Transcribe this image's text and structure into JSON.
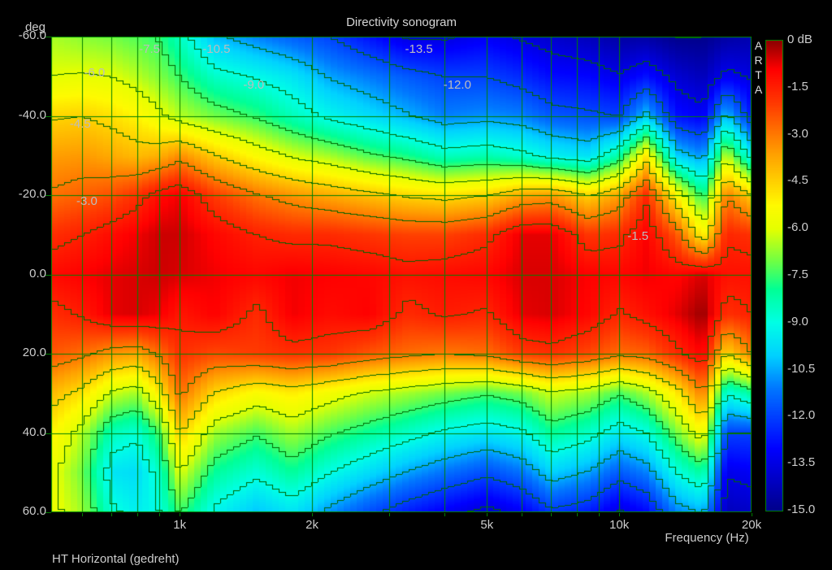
{
  "title": "Directivity sonogram",
  "watermark": "ARTA",
  "footer": "HT Horizontal (gedreht)",
  "y_axis": {
    "unit": "deg",
    "ticks": [
      {
        "label": "-60.0",
        "deg": -60
      },
      {
        "label": "-40.0",
        "deg": -40
      },
      {
        "label": "-20.0",
        "deg": -20
      },
      {
        "label": "0.0",
        "deg": 0
      },
      {
        "label": "20.0",
        "deg": 20
      },
      {
        "label": "40.0",
        "deg": 40
      },
      {
        "label": "60.0",
        "deg": 60
      }
    ]
  },
  "x_axis": {
    "title": "Frequency (Hz)",
    "ticks": [
      {
        "label": "1k",
        "hz": 1000
      },
      {
        "label": "2k",
        "hz": 2000
      },
      {
        "label": "5k",
        "hz": 5000
      },
      {
        "label": "10k",
        "hz": 10000
      },
      {
        "label": "20k",
        "hz": 20000
      }
    ]
  },
  "colorbar": {
    "labels": [
      "0 dB",
      "-1.5",
      "-3.0",
      "-4.5",
      "-6.0",
      "-7.5",
      "-9.0",
      "-10.5",
      "-12.0",
      "-13.5",
      "-15.0"
    ]
  },
  "chart_data": {
    "type": "heatmap",
    "subtype": "directivity-sonogram-with-contours",
    "title": "Directivity sonogram",
    "xlabel": "Frequency (Hz)",
    "ylabel": "deg",
    "zlabel": "dB",
    "x_scale": "log",
    "x_range": [
      510,
      20000
    ],
    "y_range": [
      -60,
      60
    ],
    "z_range": [
      -15,
      0
    ],
    "contour_step_db": 1.5,
    "grid_frequencies_hz": [
      600,
      700,
      800,
      900,
      1000,
      2000,
      3000,
      4000,
      5000,
      6000,
      7000,
      8000,
      9000,
      10000,
      20000
    ],
    "grid_angles_deg": [
      -40,
      -20,
      0,
      20,
      40
    ],
    "frequencies": [
      500,
      600,
      700,
      800,
      900,
      1000,
      1200,
      1500,
      1800,
      2200,
      2700,
      3300,
      4000,
      5000,
      6000,
      7000,
      8500,
      10000,
      11500,
      13500,
      15500,
      17500,
      20000
    ],
    "angles": [
      -60,
      -50,
      -40,
      -30,
      -20,
      -10,
      0,
      10,
      20,
      30,
      40,
      50,
      60
    ],
    "values_db": [
      [
        -6.5,
        -6.8,
        -7.0,
        -7.3,
        -7.6,
        -8.5,
        -10.3,
        -11.0,
        -11.5,
        -12.0,
        -12.8,
        -13.6,
        -13.6,
        -13.2,
        -13.6,
        -13.9,
        -14.2,
        -14.6,
        -14.6,
        -15.0,
        -15.0,
        -14.6,
        -14.4
      ],
      [
        -6.0,
        -5.9,
        -6.0,
        -6.4,
        -6.9,
        -7.5,
        -8.6,
        -9.1,
        -9.6,
        -10.6,
        -11.1,
        -11.6,
        -12.0,
        -12.0,
        -12.4,
        -12.9,
        -13.0,
        -13.4,
        -12.8,
        -13.8,
        -14.2,
        -13.2,
        -13.6
      ],
      [
        -4.6,
        -4.5,
        -4.8,
        -5.2,
        -5.8,
        -6.4,
        -7.0,
        -7.6,
        -8.4,
        -9.2,
        -9.8,
        -10.4,
        -11.0,
        -10.8,
        -11.0,
        -11.6,
        -11.8,
        -12.0,
        -10.2,
        -12.8,
        -13.2,
        -10.2,
        -12.6
      ],
      [
        -3.6,
        -3.5,
        -3.8,
        -4.1,
        -3.9,
        -3.3,
        -4.4,
        -5.4,
        -6.1,
        -6.6,
        -7.3,
        -7.8,
        -8.5,
        -8.3,
        -8.7,
        -9.3,
        -9.7,
        -8.1,
        -5.0,
        -10.0,
        -10.8,
        -6.2,
        -9.4
      ],
      [
        -2.9,
        -2.6,
        -2.3,
        -1.8,
        -1.1,
        -0.8,
        -2.0,
        -2.9,
        -3.4,
        -3.8,
        -4.2,
        -4.6,
        -4.8,
        -4.5,
        -3.7,
        -3.5,
        -4.5,
        -3.6,
        -1.7,
        -5.2,
        -7.8,
        -3.0,
        -4.4
      ],
      [
        -1.8,
        -1.5,
        -1.1,
        -0.8,
        -0.5,
        -0.5,
        -1.0,
        -1.5,
        -1.7,
        -1.7,
        -1.9,
        -2.1,
        -2.1,
        -1.7,
        -0.7,
        -0.7,
        -1.9,
        -1.7,
        -0.9,
        -2.4,
        -5.2,
        -1.6,
        -1.8
      ],
      [
        -1.1,
        -0.9,
        -0.7,
        -0.6,
        -0.5,
        -0.6,
        -0.8,
        -1.0,
        -0.8,
        -0.9,
        -1.0,
        -1.2,
        -1.1,
        -1.0,
        -0.6,
        -0.6,
        -0.9,
        -1.0,
        -0.8,
        -1.0,
        -0.6,
        -1.2,
        -1.2
      ],
      [
        -1.8,
        -1.4,
        -0.7,
        -0.6,
        -0.8,
        -1.3,
        -0.9,
        -1.7,
        -0.8,
        -1.1,
        -0.9,
        -1.7,
        -1.4,
        -1.6,
        -0.7,
        -0.6,
        -1.0,
        -1.6,
        -1.2,
        -0.7,
        -0.1,
        -1.8,
        -1.5
      ],
      [
        -2.4,
        -2.8,
        -3.4,
        -3.6,
        -2.8,
        -1.8,
        -2.2,
        -2.0,
        -1.8,
        -1.9,
        -2.4,
        -2.8,
        -3.0,
        -2.8,
        -2.0,
        -1.8,
        -2.2,
        -2.8,
        -2.6,
        -1.7,
        -0.9,
        -4.6,
        -3.0
      ],
      [
        -4.0,
        -4.8,
        -6.2,
        -6.6,
        -5.0,
        -2.8,
        -4.6,
        -5.4,
        -5.0,
        -5.6,
        -6.2,
        -6.6,
        -7.0,
        -7.4,
        -7.0,
        -6.2,
        -6.6,
        -7.4,
        -6.6,
        -5.0,
        -3.0,
        -9.0,
        -8.0
      ],
      [
        -5.0,
        -6.4,
        -8.4,
        -8.8,
        -7.4,
        -4.4,
        -6.6,
        -7.4,
        -6.6,
        -7.4,
        -8.0,
        -8.6,
        -9.2,
        -9.6,
        -9.2,
        -8.0,
        -8.6,
        -9.6,
        -9.0,
        -7.0,
        -5.4,
        -12.0,
        -12.0
      ],
      [
        -5.6,
        -7.0,
        -9.6,
        -9.8,
        -8.6,
        -6.0,
        -8.0,
        -8.8,
        -8.0,
        -9.0,
        -9.8,
        -10.6,
        -11.2,
        -11.8,
        -11.2,
        -10.0,
        -10.6,
        -11.6,
        -11.0,
        -9.0,
        -8.0,
        -13.4,
        -13.2
      ],
      [
        -5.6,
        -6.6,
        -8.8,
        -9.4,
        -9.0,
        -7.4,
        -9.2,
        -10.2,
        -9.6,
        -10.8,
        -11.8,
        -12.6,
        -13.2,
        -13.8,
        -13.2,
        -12.2,
        -12.6,
        -13.6,
        -13.0,
        -11.0,
        -10.4,
        -14.2,
        -14.0
      ]
    ],
    "contour_labels": [
      {
        "text": "-6.0",
        "hz": 640,
        "deg": -51
      },
      {
        "text": "-7.5",
        "hz": 854,
        "deg": -57
      },
      {
        "text": "-10.5",
        "hz": 1212,
        "deg": -57
      },
      {
        "text": "-9.0",
        "hz": 1474,
        "deg": -48
      },
      {
        "text": "-13.5",
        "hz": 3502,
        "deg": -57
      },
      {
        "text": "-12.0",
        "hz": 4281,
        "deg": -48
      },
      {
        "text": "-4.5",
        "hz": 594,
        "deg": -38
      },
      {
        "text": "-3.0",
        "hz": 615,
        "deg": -18.6
      },
      {
        "text": "-1.5",
        "hz": 11030,
        "deg": -9.7
      }
    ],
    "colors": {
      "background": "#000000",
      "grid": "#008000",
      "contour": "#006400",
      "axis_text": "#cccccc",
      "contour_label_text": "#bdbdbd",
      "watermark_text": "#dedede"
    },
    "colormap_stops": [
      [
        0.0,
        0,
        0,
        140
      ],
      [
        0.13,
        0,
        0,
        255
      ],
      [
        0.26,
        0,
        120,
        255
      ],
      [
        0.33,
        0,
        210,
        255
      ],
      [
        0.4,
        0,
        255,
        230
      ],
      [
        0.47,
        0,
        255,
        150
      ],
      [
        0.53,
        110,
        255,
        70
      ],
      [
        0.6,
        230,
        255,
        0
      ],
      [
        0.65,
        255,
        250,
        0
      ],
      [
        0.76,
        255,
        160,
        0
      ],
      [
        0.87,
        255,
        55,
        0
      ],
      [
        0.94,
        255,
        0,
        0
      ],
      [
        1.0,
        140,
        0,
        0
      ]
    ]
  }
}
